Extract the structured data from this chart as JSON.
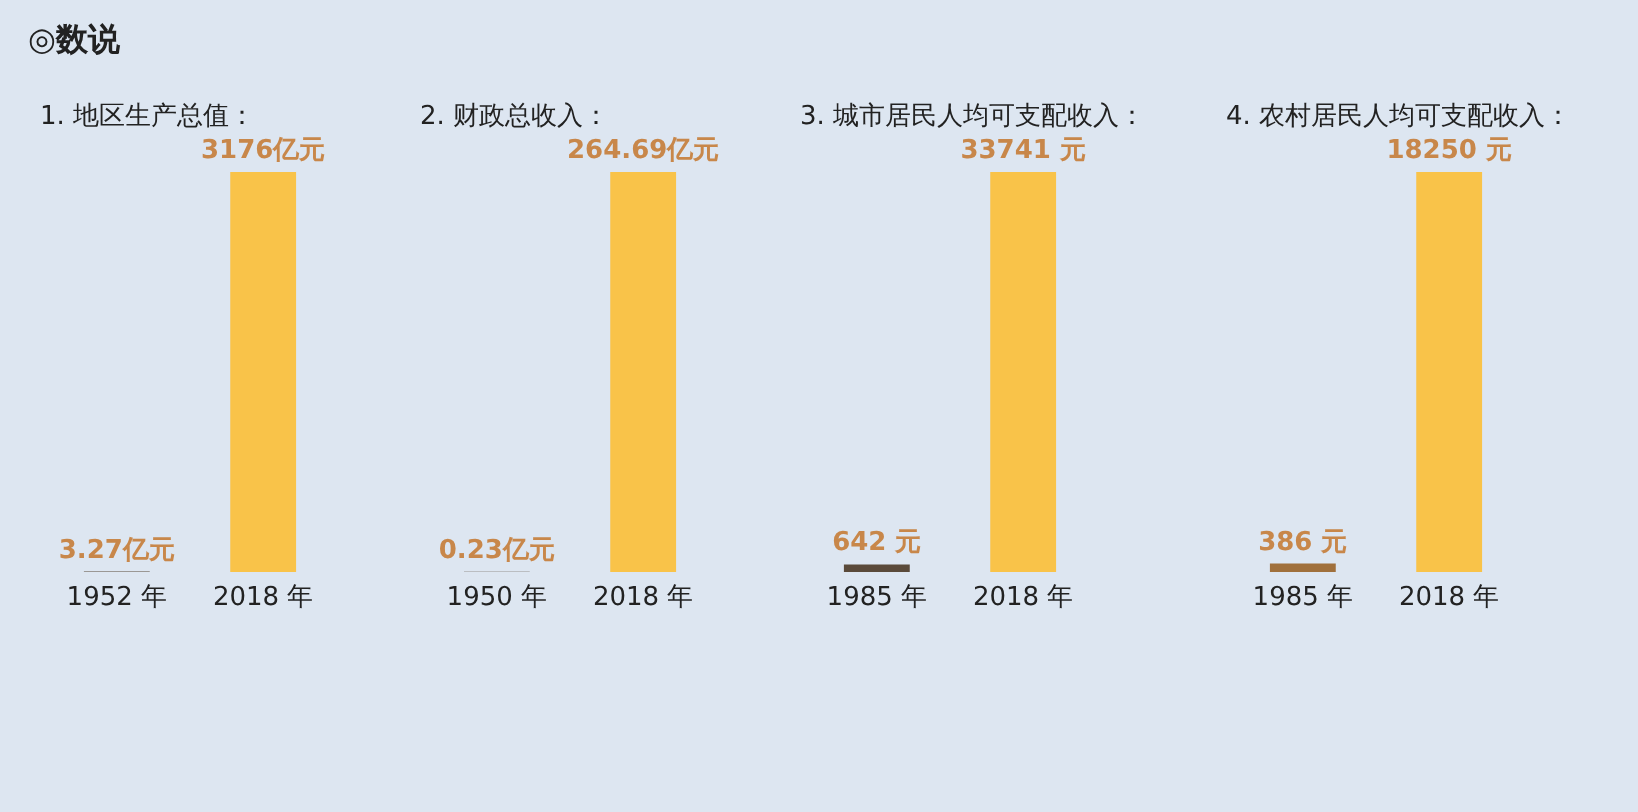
{
  "chart_data": [
    {
      "type": "bar",
      "title": "1. 地区生产总值：",
      "annotations": [
        "◎数说"
      ],
      "categories": [
        "1952 年",
        "2018 年"
      ],
      "values": [
        3.27,
        3176
      ],
      "value_labels": [
        "3.27亿元",
        "3176亿元"
      ],
      "colors": [
        "#5a4a3a",
        "#f9c349"
      ],
      "tick_labels": "x",
      "legend": false
    },
    {
      "type": "bar",
      "title": "2. 财政总收入：",
      "categories": [
        "1950 年",
        "2018 年"
      ],
      "values": [
        0.23,
        264.69
      ],
      "value_labels": [
        "0.23亿元",
        "264.69亿元"
      ],
      "colors": [
        "#5a4a3a",
        "#f9c349"
      ],
      "tick_labels": "x",
      "legend": false
    },
    {
      "type": "bar",
      "title": "3. 城市居民人均可支配收入：",
      "categories": [
        "1985 年",
        "2018 年"
      ],
      "values": [
        642,
        33741
      ],
      "value_labels": [
        "642 元",
        "33741 元"
      ],
      "colors": [
        "#5a4a3a",
        "#f9c349"
      ],
      "tick_labels": "x",
      "legend": false
    },
    {
      "type": "bar",
      "title": "4. 农村居民人均可支配收入：",
      "categories": [
        "1985 年",
        "2018 年"
      ],
      "values": [
        386,
        18250
      ],
      "value_labels": [
        "386 元",
        "18250 元"
      ],
      "colors": [
        "#a0703c",
        "#f9c349"
      ],
      "tick_labels": "x",
      "legend": false
    }
  ]
}
